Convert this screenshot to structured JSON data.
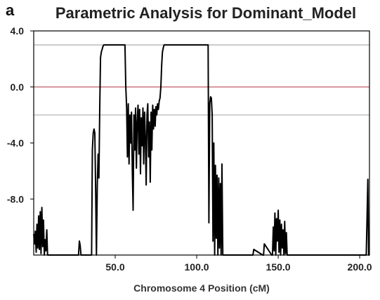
{
  "panel_label": "a",
  "chart_data": {
    "type": "line",
    "title": "Parametric Analysis for Dominant_Model",
    "xlabel": "Chromosome 4 Position (cM)",
    "ylabel": "",
    "xlim": [
      0,
      206
    ],
    "ylim": [
      -12,
      4
    ],
    "x_ticks": [
      50,
      100,
      150,
      200
    ],
    "x_tick_labels": [
      "50.0",
      "100.0",
      "150.0",
      "200.0"
    ],
    "y_ticks": [
      4,
      0,
      -4,
      -8
    ],
    "y_tick_labels": [
      "4.0",
      "0.0",
      "-4.0",
      "-8.0"
    ],
    "reference_lines": [
      {
        "y": 3.0,
        "color": "#c0c0c0"
      },
      {
        "y": 0.0,
        "color": "#c87880"
      },
      {
        "y": -2.0,
        "color": "#c0c0c0"
      }
    ],
    "grid": false,
    "series": [
      {
        "color": "#000000",
        "x": [
          0,
          0.5,
          1,
          1.5,
          2,
          2.5,
          3,
          3.5,
          4,
          4.5,
          5,
          5.5,
          6,
          6.5,
          7,
          7.5,
          8,
          8.5,
          9,
          10,
          27.5,
          28,
          28.5,
          29,
          35.5,
          36,
          36.5,
          37,
          37.5,
          38,
          38.5,
          39,
          39.5,
          40,
          40.5,
          41,
          41.5,
          42,
          42.5,
          43,
          43.5,
          44,
          45,
          47,
          56,
          56.5,
          57,
          57.5,
          58,
          58.5,
          59,
          59.5,
          60,
          60.5,
          61,
          61.5,
          62,
          62.5,
          63,
          63.5,
          64,
          64.5,
          65,
          65.5,
          66,
          66.5,
          67,
          67.5,
          68,
          68.5,
          69,
          69.5,
          70,
          70.5,
          71,
          71.5,
          72,
          72.5,
          73,
          73.5,
          74,
          74.5,
          75,
          75.5,
          76,
          76.5,
          77,
          77.5,
          78,
          78.5,
          79,
          79.5,
          80,
          81,
          83,
          107,
          107.5,
          108,
          108.5,
          109,
          109.5,
          110,
          110.5,
          111,
          111.5,
          112,
          112.5,
          113,
          113.5,
          114,
          114.5,
          115,
          115.5,
          116,
          134,
          134.5,
          135,
          140.5,
          141,
          141.5,
          146,
          146.5,
          147,
          147.5,
          148,
          148.5,
          149,
          149.5,
          150,
          150.5,
          151,
          151.5,
          152,
          152.5,
          153,
          153.5,
          154,
          154.5,
          155,
          155.5,
          156,
          203.5,
          204,
          204.5,
          205,
          205.5,
          206
        ],
        "y": [
          -10.5,
          -11.2,
          -10.3,
          -11.8,
          -9.8,
          -11.5,
          -9.2,
          -11.6,
          -8.9,
          -11.9,
          -8.6,
          -11.4,
          -9.5,
          -12,
          -10.9,
          -11.7,
          -10.2,
          -12,
          -12,
          -12,
          -12,
          -11.0,
          -11.3,
          -12,
          -12,
          -4.5,
          -3.3,
          -3.0,
          -3.3,
          -7.5,
          -12,
          -7.0,
          -4.8,
          -6.5,
          -1.5,
          2.1,
          2.5,
          2.7,
          2.9,
          3.0,
          3.0,
          3.0,
          3.0,
          3.0,
          3.0,
          0,
          -1.5,
          -5.0,
          -1.2,
          -5.5,
          -2.0,
          -4.0,
          -1.8,
          -6.0,
          -8.8,
          -2.0,
          -4.5,
          -1.5,
          -5.8,
          -2.5,
          -1.3,
          -4.8,
          -1.6,
          -6.2,
          -2.2,
          -4.2,
          -1.5,
          -5.5,
          -1.8,
          -3.5,
          -7.0,
          -2.0,
          -1.2,
          -5.0,
          -2.5,
          -6.8,
          -1.8,
          -4.5,
          -1.3,
          -3.0,
          -1.6,
          -2.8,
          -1.4,
          -2.0,
          -1.2,
          -1.6,
          -1.0,
          -0.8,
          0,
          1.6,
          2.5,
          2.8,
          3.0,
          3.0,
          3.0,
          3.0,
          -9.7,
          -1.2,
          -0.7,
          -0.8,
          -2.0,
          -11.0,
          -4.0,
          -12,
          -5.6,
          -10.8,
          -6.3,
          -12,
          -6.5,
          -11.5,
          -6.9,
          -12,
          -5.5,
          -12,
          -12,
          -12,
          -11.6,
          -12,
          -12,
          -11.2,
          -12,
          -12,
          -10.0,
          -11.7,
          -9.0,
          -12,
          -9.4,
          -11.0,
          -8.8,
          -11.8,
          -9.5,
          -12,
          -9.8,
          -11.5,
          -10.2,
          -12,
          -9.6,
          -11.9,
          -10.4,
          -12,
          -12,
          -12,
          -12,
          -9.5,
          -6.6,
          -12,
          -12
        ]
      }
    ]
  }
}
